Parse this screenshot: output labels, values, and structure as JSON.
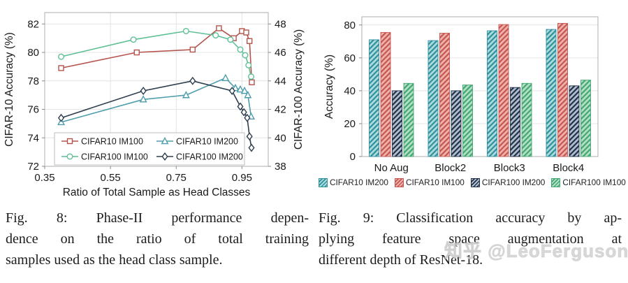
{
  "figures": [
    {
      "id": "fig8",
      "caption_lines": [
        "Fig. 8: Phase-II performance depen-",
        "dence on the ratio of total training",
        "samples used as the head class sample."
      ]
    },
    {
      "id": "fig9",
      "caption_lines": [
        "Fig. 9: Classification accuracy by ap-",
        "plying feature space augmentation at",
        "different depth of ResNet-18."
      ]
    }
  ],
  "watermark": "知乎 @LeoFerguson",
  "chart_data": [
    {
      "type": "line",
      "xlabel": "Ratio of Total Sample as Head Classes",
      "ylabel_left": "CIFAR-10 Accuracy (%)",
      "ylabel_right": "CIFAR-100 Accuracy (%)",
      "xlim": [
        0.35,
        1.03
      ],
      "ylim_left": [
        72,
        82.8
      ],
      "ylim_right": [
        38,
        48.8
      ],
      "xticks": [
        "0.35",
        "0.55",
        "0.75",
        "0.95"
      ],
      "yticks_left": [
        72,
        74,
        76,
        78,
        80,
        82
      ],
      "yticks_right": [
        38,
        40,
        42,
        44,
        46,
        48
      ],
      "grid": true,
      "legend_position": "lower-left-box",
      "series": [
        {
          "name": "CIFAR10 IM100",
          "axis": "left",
          "marker": "square",
          "color": "#b5544c",
          "x": [
            0.4,
            0.63,
            0.8,
            0.88,
            0.925,
            0.95,
            0.963,
            0.973,
            0.98
          ],
          "y": [
            78.9,
            80.0,
            80.2,
            81.7,
            81.0,
            81.5,
            81.4,
            80.8,
            77.9
          ]
        },
        {
          "name": "CIFAR10 IM200",
          "axis": "left",
          "marker": "triangle",
          "color": "#4e9dac",
          "x": [
            0.4,
            0.65,
            0.78,
            0.9,
            0.93,
            0.945,
            0.958,
            0.968,
            0.978
          ],
          "y": [
            75.1,
            76.7,
            77.0,
            78.2,
            77.5,
            77.4,
            77.3,
            77.0,
            75.5
          ]
        },
        {
          "name": "CIFAR100 IM100",
          "axis": "right",
          "marker": "circle",
          "color": "#5fc096",
          "x": [
            0.4,
            0.62,
            0.78,
            0.87,
            0.915,
            0.945,
            0.96,
            0.97,
            0.978
          ],
          "y": [
            45.7,
            46.9,
            47.5,
            47.2,
            46.9,
            46.2,
            45.8,
            45.1,
            44.3
          ]
        },
        {
          "name": "CIFAR100 IM200",
          "axis": "right",
          "marker": "diamond",
          "color": "#2e3e4f",
          "x": [
            0.4,
            0.65,
            0.8,
            0.92,
            0.945,
            0.956,
            0.966,
            0.973,
            0.979
          ],
          "y": [
            41.4,
            43.3,
            44.0,
            43.3,
            42.2,
            41.8,
            41.4,
            40.1,
            39.3
          ]
        }
      ]
    },
    {
      "type": "bar",
      "ylabel": "Accuracy (%)",
      "categories": [
        "No Aug",
        "Block2",
        "Block3",
        "Block4"
      ],
      "ylim": [
        0,
        85
      ],
      "yticks": [
        0,
        20,
        40,
        60,
        80
      ],
      "grid": true,
      "legend_position": "bottom-row",
      "hatch": "/",
      "series": [
        {
          "name": "CIFAR10 IM200",
          "values": [
            71.0,
            70.5,
            76.5,
            77.3
          ],
          "fill": "#aedcd9",
          "hatch": "#2e8fa0"
        },
        {
          "name": "CIFAR10 IM100",
          "values": [
            75.5,
            75.0,
            80.3,
            81.0
          ],
          "fill": "#f0b2ac",
          "hatch": "#c4564f"
        },
        {
          "name": "CIFAR100 IM200",
          "values": [
            40.0,
            40.0,
            42.0,
            43.0
          ],
          "fill": "#b3bfcd",
          "hatch": "#1e3049"
        },
        {
          "name": "CIFAR100 IM100",
          "values": [
            44.5,
            43.5,
            44.5,
            46.5
          ],
          "fill": "#b2e0c6",
          "hatch": "#43a671"
        }
      ]
    }
  ]
}
